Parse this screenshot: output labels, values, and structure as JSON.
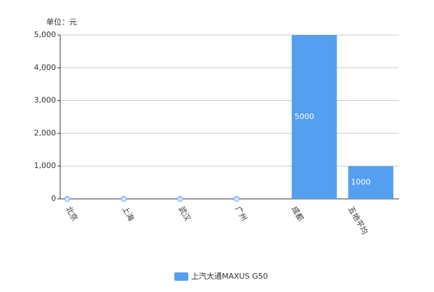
{
  "chart_data": {
    "type": "bar",
    "unit_label": "单位：元",
    "categories": [
      "北京",
      "上海",
      "武汉",
      "广州",
      "成都",
      "五地平均"
    ],
    "series": [
      {
        "name": "上汽大通MAXUS G50",
        "color": "#559ff0",
        "values": [
          0,
          0,
          0,
          0,
          5000,
          1000
        ]
      }
    ],
    "ylim": [
      0,
      5000
    ],
    "yticks": [
      0,
      {
        "value": 1000,
        "label": "1,000"
      },
      {
        "value": 2000,
        "label": "2,000"
      },
      {
        "value": 3000,
        "label": "3,000"
      },
      {
        "value": 4000,
        "label": "4,000"
      },
      {
        "value": 5000,
        "label": "5,000"
      }
    ],
    "grid": true,
    "legend": "bottom"
  }
}
